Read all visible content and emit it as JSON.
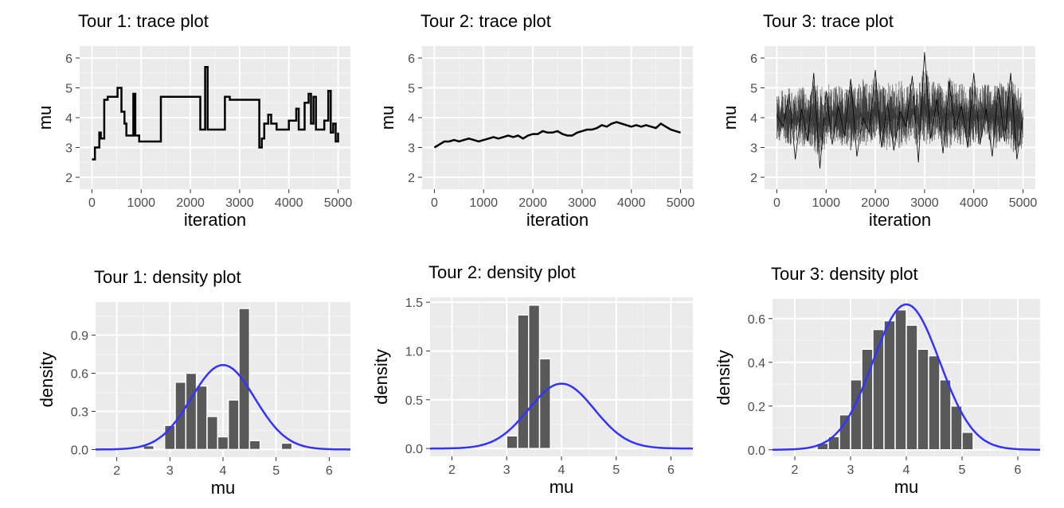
{
  "chart_data": [
    {
      "type": "line",
      "title": "Tour 1: trace plot",
      "xlabel": "iteration",
      "ylabel": "mu",
      "xlim": [
        -250,
        5250
      ],
      "ylim": [
        1.6,
        6.4
      ],
      "xticks": [
        0,
        1000,
        2000,
        3000,
        4000,
        5000
      ],
      "yticks": [
        2,
        3,
        4,
        5,
        6
      ],
      "grid": true,
      "series_color": "#000000",
      "x": [
        0,
        60,
        150,
        180,
        250,
        320,
        400,
        520,
        600,
        660,
        700,
        730,
        780,
        840,
        880,
        960,
        1100,
        1400,
        1650,
        2000,
        2200,
        2260,
        2300,
        2350,
        2400,
        2600,
        2700,
        2800,
        3000,
        3300,
        3400,
        3450,
        3500,
        3580,
        3640,
        3750,
        3850,
        4000,
        4150,
        4200,
        4250,
        4320,
        4400,
        4450,
        4500,
        4550,
        4650,
        4720,
        4760,
        4800,
        4850,
        4900,
        4950,
        5000
      ],
      "y": [
        2.6,
        3.0,
        3.5,
        3.3,
        4.6,
        4.7,
        4.7,
        5.0,
        4.2,
        3.8,
        3.4,
        3.4,
        3.4,
        4.8,
        3.4,
        3.2,
        3.2,
        4.7,
        4.7,
        4.7,
        3.6,
        3.6,
        5.7,
        3.6,
        3.6,
        3.6,
        4.7,
        4.6,
        4.6,
        4.6,
        3.0,
        3.3,
        3.8,
        4.1,
        3.8,
        3.6,
        3.6,
        3.9,
        4.3,
        3.6,
        3.6,
        4.5,
        4.8,
        3.8,
        4.7,
        3.6,
        3.6,
        3.9,
        3.9,
        4.9,
        3.5,
        3.8,
        3.2,
        3.5
      ]
    },
    {
      "type": "line",
      "title": "Tour 2: trace plot",
      "xlabel": "iteration",
      "ylabel": "mu",
      "xlim": [
        -250,
        5250
      ],
      "ylim": [
        1.6,
        6.4
      ],
      "xticks": [
        0,
        1000,
        2000,
        3000,
        4000,
        5000
      ],
      "yticks": [
        2,
        3,
        4,
        5,
        6
      ],
      "grid": true,
      "series_color": "#000000",
      "x": [
        0,
        100,
        200,
        300,
        400,
        500,
        600,
        700,
        800,
        900,
        1000,
        1100,
        1200,
        1300,
        1400,
        1500,
        1600,
        1700,
        1800,
        1900,
        2000,
        2100,
        2200,
        2300,
        2400,
        2500,
        2600,
        2700,
        2800,
        2900,
        3000,
        3100,
        3200,
        3300,
        3400,
        3500,
        3600,
        3700,
        3800,
        3900,
        4000,
        4100,
        4200,
        4300,
        4400,
        4500,
        4600,
        4700,
        4800,
        4900,
        5000
      ],
      "y": [
        3.0,
        3.1,
        3.2,
        3.2,
        3.25,
        3.2,
        3.25,
        3.3,
        3.25,
        3.2,
        3.25,
        3.3,
        3.35,
        3.3,
        3.35,
        3.4,
        3.35,
        3.4,
        3.3,
        3.4,
        3.45,
        3.45,
        3.55,
        3.5,
        3.5,
        3.55,
        3.45,
        3.4,
        3.4,
        3.5,
        3.55,
        3.6,
        3.6,
        3.65,
        3.75,
        3.7,
        3.8,
        3.85,
        3.8,
        3.75,
        3.7,
        3.75,
        3.7,
        3.75,
        3.7,
        3.65,
        3.8,
        3.7,
        3.6,
        3.55,
        3.5
      ]
    },
    {
      "type": "line",
      "title": "Tour 3: trace plot",
      "xlabel": "iteration",
      "ylabel": "mu",
      "xlim": [
        -250,
        5250
      ],
      "ylim": [
        1.6,
        6.4
      ],
      "xticks": [
        0,
        1000,
        2000,
        3000,
        4000,
        5000
      ],
      "yticks": [
        2,
        3,
        4,
        5,
        6
      ],
      "grid": true,
      "series_color": "#000000",
      "x": [
        0,
        125,
        250,
        375,
        500,
        625,
        750,
        875,
        1000,
        1125,
        1250,
        1375,
        1500,
        1625,
        1750,
        1875,
        2000,
        2125,
        2250,
        2375,
        2500,
        2625,
        2750,
        2875,
        3000,
        3125,
        3250,
        3375,
        3500,
        3625,
        3750,
        3875,
        4000,
        4125,
        4250,
        4375,
        4500,
        4625,
        4750,
        4875,
        5000
      ],
      "y": [
        4.1,
        3.7,
        4.8,
        2.6,
        4.3,
        3.2,
        5.5,
        2.3,
        4.9,
        3.1,
        4.4,
        3.4,
        5.3,
        2.7,
        4.0,
        3.5,
        5.6,
        3.0,
        4.5,
        2.9,
        4.2,
        3.7,
        5.4,
        2.5,
        6.2,
        3.3,
        4.6,
        2.8,
        5.2,
        3.6,
        4.4,
        3.0,
        5.5,
        3.1,
        4.3,
        2.7,
        5.0,
        3.2,
        5.5,
        2.6,
        4.0
      ],
      "min_envelope": [
        3.0,
        2.8,
        2.6,
        2.9,
        2.5,
        2.8,
        2.4,
        2.2,
        2.6,
        2.9,
        2.6,
        2.7,
        2.4,
        2.8,
        2.5,
        2.7,
        2.9,
        2.6,
        2.4,
        2.6,
        2.5,
        2.7,
        2.8,
        2.6,
        2.5,
        2.7,
        2.9,
        2.6,
        2.4,
        2.8,
        2.6,
        2.5,
        2.4,
        2.7,
        2.9,
        2.6,
        2.5,
        2.8,
        2.4,
        2.3,
        2.7
      ],
      "max_envelope": [
        4.9,
        5.2,
        5.3,
        5.0,
        5.4,
        5.1,
        5.6,
        5.3,
        5.5,
        5.3,
        5.4,
        5.2,
        5.5,
        5.3,
        5.6,
        5.4,
        5.7,
        5.3,
        5.5,
        5.4,
        5.6,
        5.3,
        5.5,
        5.4,
        6.2,
        5.5,
        5.6,
        5.3,
        5.7,
        5.4,
        5.5,
        5.3,
        5.6,
        5.4,
        5.5,
        5.3,
        5.5,
        5.4,
        5.7,
        5.4,
        5.0
      ]
    },
    {
      "type": "bar",
      "title": "Tour 1: density plot",
      "xlabel": "mu",
      "ylabel": "density",
      "xlim": [
        1.6,
        6.4
      ],
      "ylim": [
        -0.06,
        1.16
      ],
      "xticks": [
        2,
        3,
        4,
        5,
        6
      ],
      "yticks": [
        0.0,
        0.3,
        0.6,
        0.9
      ],
      "ytick_labels": [
        "0.0",
        "0.3",
        "0.6",
        "0.9"
      ],
      "grid": true,
      "bar_color": "#595959",
      "curve_color": "#3333ff",
      "bin_width": 0.2,
      "bin_centers": [
        2.4,
        2.6,
        2.8,
        3.0,
        3.2,
        3.4,
        3.6,
        3.8,
        4.0,
        4.2,
        4.4,
        4.6,
        4.8,
        5.0,
        5.2,
        5.4,
        5.6
      ],
      "values": [
        0.0,
        0.03,
        0.0,
        0.19,
        0.53,
        0.6,
        0.5,
        0.26,
        0.1,
        0.39,
        1.11,
        0.07,
        0.0,
        0.0,
        0.05,
        0.0,
        0.0
      ],
      "curve_mean": 4.0,
      "curve_sd": 0.6
    },
    {
      "type": "bar",
      "title": "Tour 2: density plot",
      "xlabel": "mu",
      "ylabel": "density",
      "xlim": [
        1.6,
        6.4
      ],
      "ylim": [
        -0.08,
        1.55
      ],
      "xticks": [
        2,
        3,
        4,
        5,
        6
      ],
      "yticks": [
        0.0,
        0.5,
        1.0,
        1.5
      ],
      "ytick_labels": [
        "0.0",
        "0.5",
        "1.0",
        "1.5"
      ],
      "grid": true,
      "bar_color": "#595959",
      "curve_color": "#3333ff",
      "bin_width": 0.2,
      "bin_centers": [
        3.1,
        3.3,
        3.5,
        3.7,
        3.9
      ],
      "values": [
        0.13,
        1.37,
        1.47,
        0.92,
        0.0
      ],
      "curve_mean": 4.0,
      "curve_sd": 0.6
    },
    {
      "type": "bar",
      "title": "Tour 3: density plot",
      "xlabel": "mu",
      "ylabel": "density",
      "xlim": [
        1.6,
        6.4
      ],
      "ylim": [
        -0.03,
        0.69
      ],
      "xticks": [
        2,
        3,
        4,
        5,
        6
      ],
      "yticks": [
        0.0,
        0.2,
        0.4,
        0.6
      ],
      "ytick_labels": [
        "0.0",
        "0.2",
        "0.4",
        "0.6"
      ],
      "grid": true,
      "bar_color": "#595959",
      "curve_color": "#3333ff",
      "bin_width": 0.2,
      "bin_centers": [
        2.5,
        2.7,
        2.9,
        3.1,
        3.3,
        3.5,
        3.7,
        3.9,
        4.1,
        4.3,
        4.5,
        4.7,
        4.9,
        5.1,
        5.3
      ],
      "values": [
        0.03,
        0.06,
        0.16,
        0.32,
        0.46,
        0.55,
        0.59,
        0.64,
        0.57,
        0.46,
        0.43,
        0.32,
        0.2,
        0.08,
        0.0
      ],
      "curve_mean": 4.0,
      "curve_sd": 0.6
    }
  ]
}
